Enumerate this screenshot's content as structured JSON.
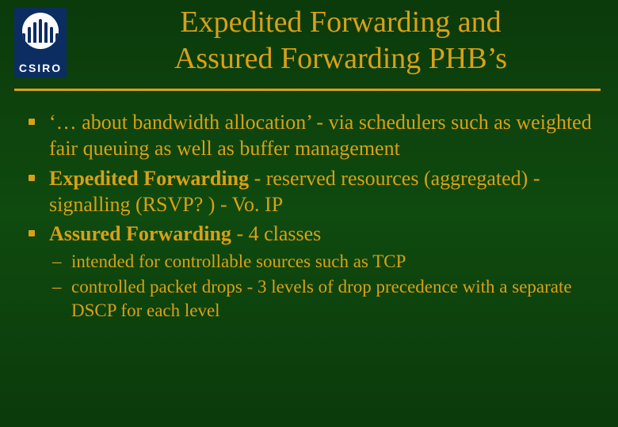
{
  "logo": {
    "org": "CSIRO",
    "bg_color": "#0b2d62",
    "circle_color": "#ffffff"
  },
  "title": {
    "line1": "Expedited Forwarding and",
    "line2": "Assured Forwarding PHB’s",
    "color": "#d9a017",
    "fontsize": 38
  },
  "rule_color": "#d9a017",
  "body": {
    "color": "#d9a017",
    "fontsize": 26,
    "bullets": [
      {
        "text": "‘… about bandwidth allocation’ - via schedulers such as weighted fair queuing as well as buffer management"
      },
      {
        "lead_bold": "Expedited Forwarding",
        "rest": " - reserved resources (aggregated) - signalling (RSVP? ) - Vo. IP"
      },
      {
        "lead_bold": "Assured Forwarding",
        "rest": " - 4 classes",
        "sub": [
          "intended for controllable sources such as TCP",
          " controlled packet drops - 3 levels of drop precedence with a separate DSCP for each level"
        ]
      }
    ]
  },
  "background": "#0d400d"
}
